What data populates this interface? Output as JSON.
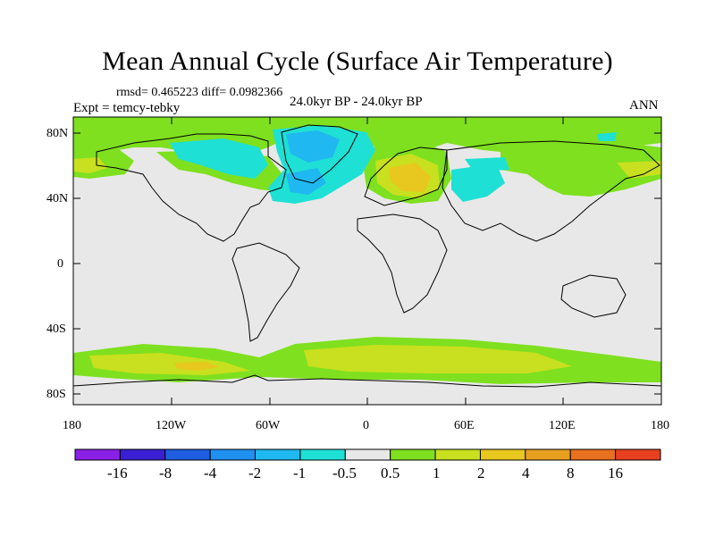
{
  "title": "Mean Annual Cycle (Surface Air Temperature)",
  "stats": "rmsd= 0.465223 diff= 0.0982366",
  "experiment": "Expt = temcy-tebky",
  "period": "24.0kyr BP - 24.0kyr BP",
  "season": "ANN",
  "lat_labels": [
    "80N",
    "40N",
    "0",
    "40S",
    "80S"
  ],
  "lon_labels": [
    "180",
    "120W",
    "60W",
    "0",
    "60E",
    "120E",
    "180"
  ],
  "colorbar": {
    "labels": [
      "-16",
      "-8",
      "-4",
      "-2",
      "-1",
      "-0.5",
      "0.5",
      "1",
      "2",
      "4",
      "8",
      "16"
    ],
    "colors": [
      "#8a1fe6",
      "#3a1fd4",
      "#1f5ee0",
      "#1f8ff0",
      "#1fb8f0",
      "#1fe0d4",
      "#e8e8e8",
      "#7fe01f",
      "#c8e01f",
      "#e8c81f",
      "#e8a01f",
      "#e8701f",
      "#e8401f"
    ]
  },
  "colors": {
    "neutral": "#e8e8e8",
    "green": "#7fe01f",
    "yellow_green": "#c8e01f",
    "yellow": "#e8c81f",
    "orange": "#e8a01f",
    "cyan": "#1fe0d4",
    "light_blue": "#1fb8f0",
    "blue": "#1f8ff0"
  }
}
